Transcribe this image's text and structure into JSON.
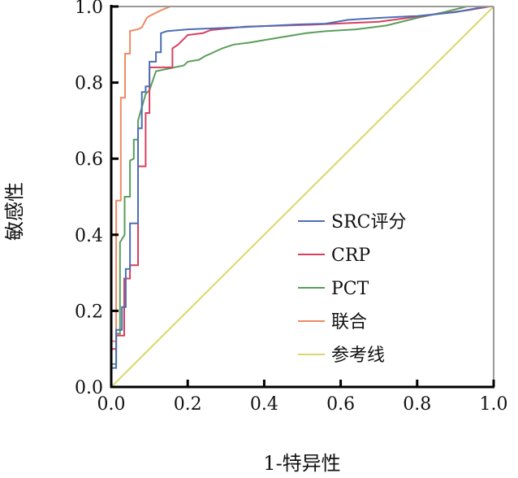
{
  "chart_data": {
    "type": "line",
    "title": "",
    "xlabel": "1-特异性",
    "ylabel": "敏感性",
    "xlim": [
      0,
      1
    ],
    "ylim": [
      0,
      1
    ],
    "xticks": [
      "0.0",
      "0.2",
      "0.4",
      "0.6",
      "0.8",
      "1.0"
    ],
    "yticks": [
      "0.0",
      "0.2",
      "0.4",
      "0.6",
      "0.8",
      "1.0"
    ],
    "legend_position": "right-center",
    "grid": false,
    "series": [
      {
        "name": "SRC评分",
        "color": "#4a6fb5",
        "points": [
          [
            0,
            0
          ],
          [
            0,
            0.05
          ],
          [
            0.013,
            0.05
          ],
          [
            0.013,
            0.15
          ],
          [
            0.028,
            0.15
          ],
          [
            0.028,
            0.21
          ],
          [
            0.038,
            0.21
          ],
          [
            0.038,
            0.31
          ],
          [
            0.049,
            0.31
          ],
          [
            0.049,
            0.43
          ],
          [
            0.07,
            0.43
          ],
          [
            0.07,
            0.68
          ],
          [
            0.08,
            0.68
          ],
          [
            0.08,
            0.775
          ],
          [
            0.09,
            0.775
          ],
          [
            0.09,
            0.79
          ],
          [
            0.1,
            0.79
          ],
          [
            0.1,
            0.855
          ],
          [
            0.117,
            0.855
          ],
          [
            0.117,
            0.88
          ],
          [
            0.13,
            0.88
          ],
          [
            0.13,
            0.93
          ],
          [
            0.145,
            0.935
          ],
          [
            0.2,
            0.94
          ],
          [
            0.35,
            0.946
          ],
          [
            0.43,
            0.95
          ],
          [
            0.49,
            0.953
          ],
          [
            0.56,
            0.955
          ],
          [
            0.62,
            0.965
          ],
          [
            0.7,
            0.97
          ],
          [
            0.8,
            0.975
          ],
          [
            0.9,
            0.985
          ],
          [
            0.98,
            1.0
          ],
          [
            1,
            1
          ]
        ]
      },
      {
        "name": "CRP",
        "color": "#d8405f",
        "points": [
          [
            0,
            0
          ],
          [
            0,
            0.1
          ],
          [
            0.013,
            0.1
          ],
          [
            0.013,
            0.135
          ],
          [
            0.034,
            0.135
          ],
          [
            0.034,
            0.285
          ],
          [
            0.049,
            0.285
          ],
          [
            0.049,
            0.32
          ],
          [
            0.07,
            0.32
          ],
          [
            0.07,
            0.58
          ],
          [
            0.09,
            0.58
          ],
          [
            0.09,
            0.72
          ],
          [
            0.1,
            0.72
          ],
          [
            0.1,
            0.84
          ],
          [
            0.16,
            0.84
          ],
          [
            0.16,
            0.89
          ],
          [
            0.175,
            0.9
          ],
          [
            0.19,
            0.915
          ],
          [
            0.2,
            0.925
          ],
          [
            0.24,
            0.93
          ],
          [
            0.26,
            0.938
          ],
          [
            0.35,
            0.947
          ],
          [
            0.52,
            0.952
          ],
          [
            0.7,
            0.96
          ],
          [
            0.85,
            0.98
          ],
          [
            0.93,
            0.99
          ],
          [
            0.99,
            1.0
          ],
          [
            1,
            1
          ]
        ]
      },
      {
        "name": "PCT",
        "color": "#5a9e5a",
        "points": [
          [
            0,
            0
          ],
          [
            0,
            0.06
          ],
          [
            0.013,
            0.06
          ],
          [
            0.013,
            0.14
          ],
          [
            0.023,
            0.14
          ],
          [
            0.023,
            0.38
          ],
          [
            0.035,
            0.4
          ],
          [
            0.035,
            0.5
          ],
          [
            0.049,
            0.5
          ],
          [
            0.049,
            0.595
          ],
          [
            0.059,
            0.6
          ],
          [
            0.059,
            0.65
          ],
          [
            0.07,
            0.65
          ],
          [
            0.07,
            0.7
          ],
          [
            0.09,
            0.77
          ],
          [
            0.1,
            0.78
          ],
          [
            0.117,
            0.83
          ],
          [
            0.19,
            0.845
          ],
          [
            0.2,
            0.855
          ],
          [
            0.23,
            0.86
          ],
          [
            0.246,
            0.87
          ],
          [
            0.26,
            0.876
          ],
          [
            0.29,
            0.89
          ],
          [
            0.32,
            0.9
          ],
          [
            0.36,
            0.905
          ],
          [
            0.39,
            0.91
          ],
          [
            0.45,
            0.92
          ],
          [
            0.51,
            0.93
          ],
          [
            0.56,
            0.935
          ],
          [
            0.64,
            0.94
          ],
          [
            0.72,
            0.95
          ],
          [
            0.8,
            0.97
          ],
          [
            0.87,
            0.985
          ],
          [
            0.93,
            1.0
          ],
          [
            1,
            1
          ]
        ]
      },
      {
        "name": "联合",
        "color": "#ef8a62",
        "points": [
          [
            0,
            0
          ],
          [
            0,
            0.12
          ],
          [
            0.013,
            0.12
          ],
          [
            0.013,
            0.49
          ],
          [
            0.025,
            0.49
          ],
          [
            0.025,
            0.76
          ],
          [
            0.036,
            0.76
          ],
          [
            0.036,
            0.876
          ],
          [
            0.049,
            0.876
          ],
          [
            0.049,
            0.936
          ],
          [
            0.07,
            0.94
          ],
          [
            0.08,
            0.945
          ],
          [
            0.093,
            0.97
          ],
          [
            0.1,
            0.975
          ],
          [
            0.13,
            0.99
          ],
          [
            0.155,
            1.0
          ],
          [
            1,
            1
          ]
        ]
      },
      {
        "name": "参考线",
        "color": "#d9d86a",
        "points": [
          [
            0,
            0
          ],
          [
            1,
            1
          ]
        ]
      }
    ]
  }
}
